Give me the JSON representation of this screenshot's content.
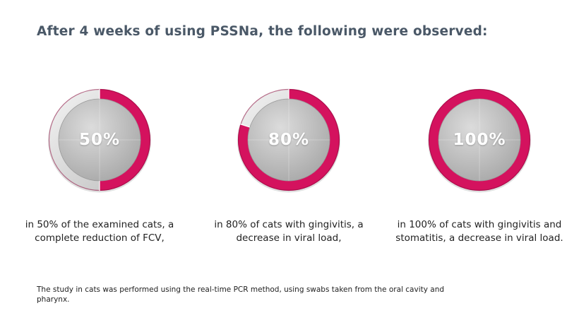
{
  "title": "After 4 weeks of using PSSNa, the following were observed:",
  "colors": {
    "accent": "#d4125e",
    "accent_dark": "#8c0a3d",
    "ring_remainder": "#e2e2e2",
    "disc": "#c6c6c6",
    "title": "#4a5867"
  },
  "chart_data": [
    {
      "type": "pie",
      "values": [
        50,
        50
      ],
      "label": "50%",
      "caption": "in 50% of the examined cats, a complete reduction of FCV,"
    },
    {
      "type": "pie",
      "values": [
        80,
        20
      ],
      "label": "80%",
      "caption": "in 80% of cats with gingivitis, a decrease in viral load,"
    },
    {
      "type": "pie",
      "values": [
        100,
        0
      ],
      "label": "100%",
      "caption": "in 100% of cats with gingivitis and stomatitis, a decrease in viral load."
    }
  ],
  "footnote": "The study in cats was performed using the real-time PCR method, using swabs taken from the oral cavity and pharynx."
}
